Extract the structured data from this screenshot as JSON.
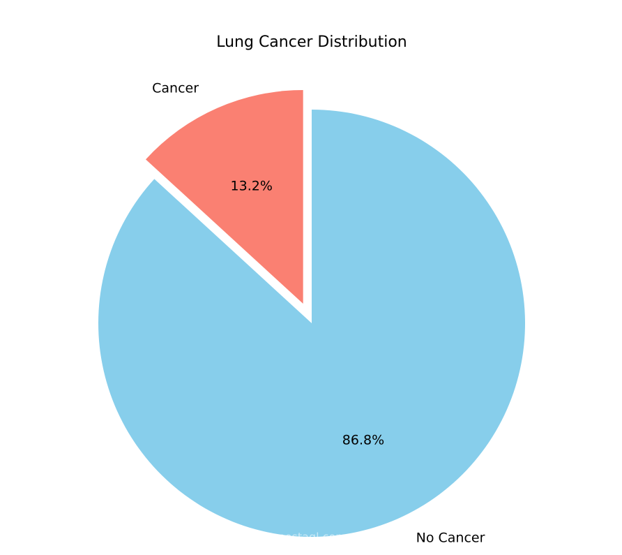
{
  "chart_data": {
    "type": "pie",
    "title": "Lung Cancer Distribution",
    "categories": [
      "Cancer",
      "No Cancer"
    ],
    "values": [
      13.2,
      86.8
    ],
    "value_labels": [
      "13.2%",
      "86.8%"
    ],
    "colors": [
      "#fa8072",
      "#87ceeb"
    ],
    "startangle": 90,
    "explode": [
      0.1,
      0
    ],
    "watermark": "mostaql.com"
  }
}
